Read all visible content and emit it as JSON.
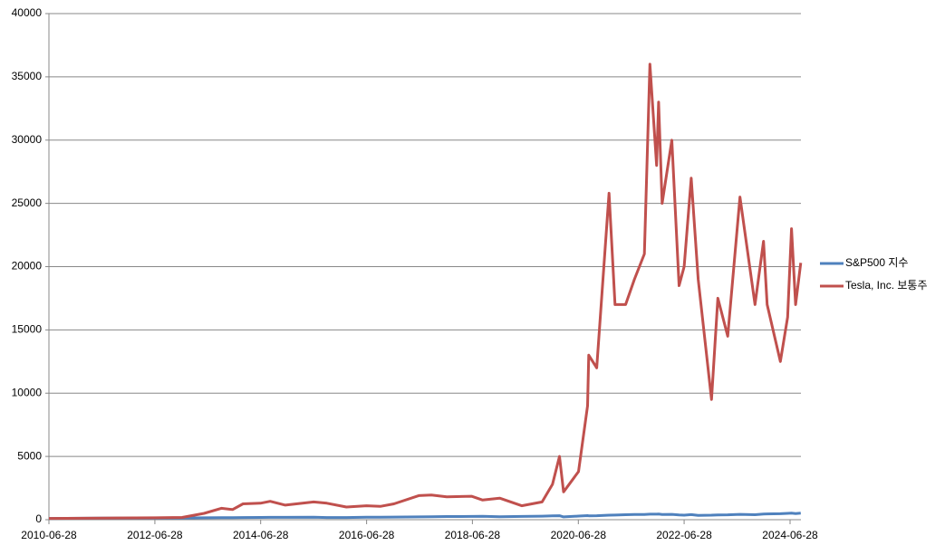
{
  "chart_data": {
    "type": "line",
    "x": [
      "2010-06-28",
      "2011-06-28",
      "2012-06-28",
      "2013-01-02",
      "2013-06-03",
      "2013-09-30",
      "2013-12-16",
      "2014-02-26",
      "2014-06-27",
      "2014-09-02",
      "2014-12-15",
      "2015-06-29",
      "2015-09-28",
      "2016-02-10",
      "2016-06-27",
      "2016-09-30",
      "2017-01-03",
      "2017-06-23",
      "2017-09-18",
      "2018-01-02",
      "2018-06-22",
      "2018-09-07",
      "2019-01-02",
      "2019-06-03",
      "2019-10-22",
      "2020-01-02",
      "2020-02-19",
      "2020-03-18",
      "2020-06-29",
      "2020-08-31",
      "2020-09-08",
      "2020-11-02",
      "2021-01-26",
      "2021-03-08",
      "2021-05-20",
      "2021-07-20",
      "2021-09-27",
      "2021-11-04",
      "2021-12-20",
      "2022-01-03",
      "2022-01-27",
      "2022-04-04",
      "2022-05-24",
      "2022-06-28",
      "2022-08-16",
      "2022-10-03",
      "2023-01-03",
      "2023-02-16",
      "2023-04-25",
      "2023-07-18",
      "2023-10-30",
      "2023-12-28",
      "2024-01-22",
      "2024-04-22",
      "2024-06-11",
      "2024-07-08",
      "2024-08-05",
      "2024-09-10"
    ],
    "series": [
      {
        "name": "S&P500 지수",
        "color": "#4f81bd",
        "values": [
          100,
          120,
          120,
          135,
          150,
          155,
          165,
          170,
          180,
          185,
          185,
          195,
          175,
          172,
          190,
          200,
          210,
          225,
          235,
          250,
          255,
          270,
          235,
          260,
          280,
          300,
          315,
          225,
          285,
          325,
          310,
          315,
          355,
          365,
          390,
          410,
          410,
          440,
          435,
          445,
          410,
          425,
          370,
          360,
          400,
          340,
          355,
          380,
          385,
          425,
          390,
          450,
          455,
          470,
          500,
          515,
          490,
          525
        ]
      },
      {
        "name": "Tesla, Inc. 보통주",
        "color": "#c0504d",
        "values": [
          100,
          130,
          150,
          180,
          500,
          900,
          800,
          1250,
          1300,
          1450,
          1150,
          1400,
          1300,
          1000,
          1100,
          1050,
          1250,
          1900,
          1950,
          1800,
          1850,
          1550,
          1700,
          1100,
          1400,
          2800,
          5000,
          2200,
          3800,
          9000,
          13000,
          12000,
          25800,
          17000,
          17000,
          19000,
          21000,
          36000,
          28000,
          33000,
          25000,
          30000,
          18500,
          20000,
          27000,
          19000,
          9500,
          17500,
          14500,
          25500,
          17000,
          22000,
          17000,
          12500,
          16000,
          23000,
          17000,
          20300
        ]
      }
    ],
    "xlim": [
      "2010-06-28",
      "2024-09-11"
    ],
    "xticks": [
      "2010-06-28",
      "2012-06-28",
      "2014-06-28",
      "2016-06-28",
      "2018-06-28",
      "2020-06-28",
      "2022-06-28",
      "2024-06-28"
    ],
    "ylim": [
      0,
      40000
    ],
    "yticks": [
      0,
      5000,
      10000,
      15000,
      20000,
      25000,
      30000,
      35000,
      40000
    ],
    "grid": true,
    "legend": "right"
  }
}
